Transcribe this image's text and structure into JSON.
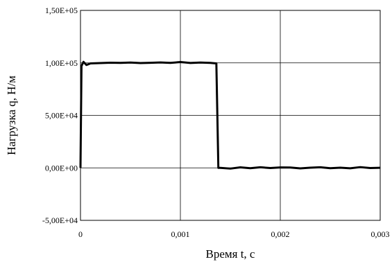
{
  "chart_data": {
    "type": "line",
    "title": "",
    "xlabel": "Время t, с",
    "ylabel": "Нагрузка q, Н/м",
    "xlim": [
      0,
      0.003
    ],
    "ylim": [
      -50000,
      150000
    ],
    "grid": true,
    "x_ticks": [
      {
        "value": 0,
        "label": "0"
      },
      {
        "value": 0.001,
        "label": "0,001"
      },
      {
        "value": 0.002,
        "label": "0,002"
      },
      {
        "value": 0.003,
        "label": "0,003"
      }
    ],
    "y_ticks": [
      {
        "value": -50000,
        "label": "-5,00E+04"
      },
      {
        "value": 0,
        "label": "0,00E+00"
      },
      {
        "value": 50000,
        "label": "5,00E+04"
      },
      {
        "value": 100000,
        "label": "1,00E+05"
      },
      {
        "value": 150000,
        "label": "1,50E+05"
      }
    ],
    "series": [
      {
        "x": [
          0,
          1e-05,
          3e-05,
          6e-05,
          0.0001,
          0.0002,
          0.0003,
          0.0004,
          0.0005,
          0.0006,
          0.0007,
          0.0008,
          0.0009,
          0.001,
          0.0011,
          0.0012,
          0.0013,
          0.00136,
          0.00137,
          0.00138,
          0.0014,
          0.0015,
          0.0016,
          0.0017,
          0.0018,
          0.0019,
          0.002,
          0.0021,
          0.0022,
          0.0023,
          0.0024,
          0.0025,
          0.0026,
          0.0027,
          0.0028,
          0.0029,
          0.003
        ],
        "y": [
          0,
          97000,
          101000,
          98000,
          99500,
          99800,
          100200,
          100000,
          100300,
          99800,
          100100,
          100400,
          100000,
          100800,
          99900,
          100300,
          100000,
          99500,
          50000,
          0,
          0,
          -700,
          500,
          -300,
          600,
          -200,
          400,
          300,
          -500,
          200,
          600,
          -300,
          200,
          -400,
          700,
          -200,
          100
        ]
      }
    ]
  }
}
